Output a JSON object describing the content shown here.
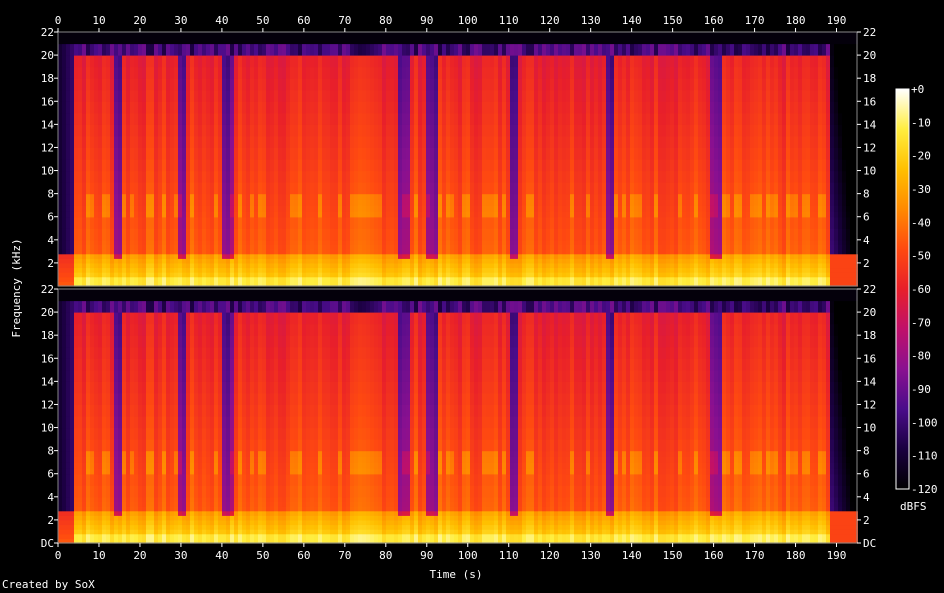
{
  "credit": "Created by SoX",
  "chart_data": {
    "type": "heatmap",
    "subtype": "spectrogram",
    "channels": 2,
    "xlabel": "Time (s)",
    "ylabel": "Frequency (kHz)",
    "xlim": [
      0,
      195
    ],
    "ylim": [
      0,
      22
    ],
    "x_ticks": [
      0,
      10,
      20,
      30,
      40,
      50,
      60,
      70,
      80,
      90,
      100,
      110,
      120,
      130,
      140,
      150,
      160,
      170,
      180,
      190
    ],
    "y_ticks": [
      0,
      2,
      4,
      6,
      8,
      10,
      12,
      14,
      16,
      18,
      20,
      22
    ],
    "y_tick_labels": [
      "DC",
      "2",
      "4",
      "6",
      "8",
      "10",
      "12",
      "14",
      "16",
      "18",
      "20",
      "22"
    ],
    "colorbar": {
      "label": "dBFS",
      "range": [
        -120,
        0
      ],
      "ticks": [
        0,
        -10,
        -20,
        -30,
        -40,
        -50,
        -60,
        -70,
        -80,
        -90,
        -100,
        -110,
        -120
      ],
      "tick_labels": [
        "+0",
        "-10",
        "-20",
        "-30",
        "-40",
        "-50",
        "-60",
        "-70",
        "-80",
        "-90",
        "-100",
        "-110",
        "-120"
      ],
      "colors": [
        "#000000",
        "#1a0040",
        "#4a0c8a",
        "#8a1090",
        "#c0106a",
        "#e81f2a",
        "#ff4a10",
        "#ff8a00",
        "#ffc000",
        "#ffee40",
        "#ffffff"
      ]
    },
    "audio_span_s": [
      3.5,
      188
    ],
    "fade_in_s": [
      0,
      3.5
    ],
    "fade_out_s": [
      188,
      193
    ],
    "highcut_khz": 20,
    "dropouts_s": [
      14,
      30,
      41,
      84,
      91,
      111,
      134,
      160
    ],
    "event_bands_khz": [
      6.5,
      7.5
    ]
  }
}
